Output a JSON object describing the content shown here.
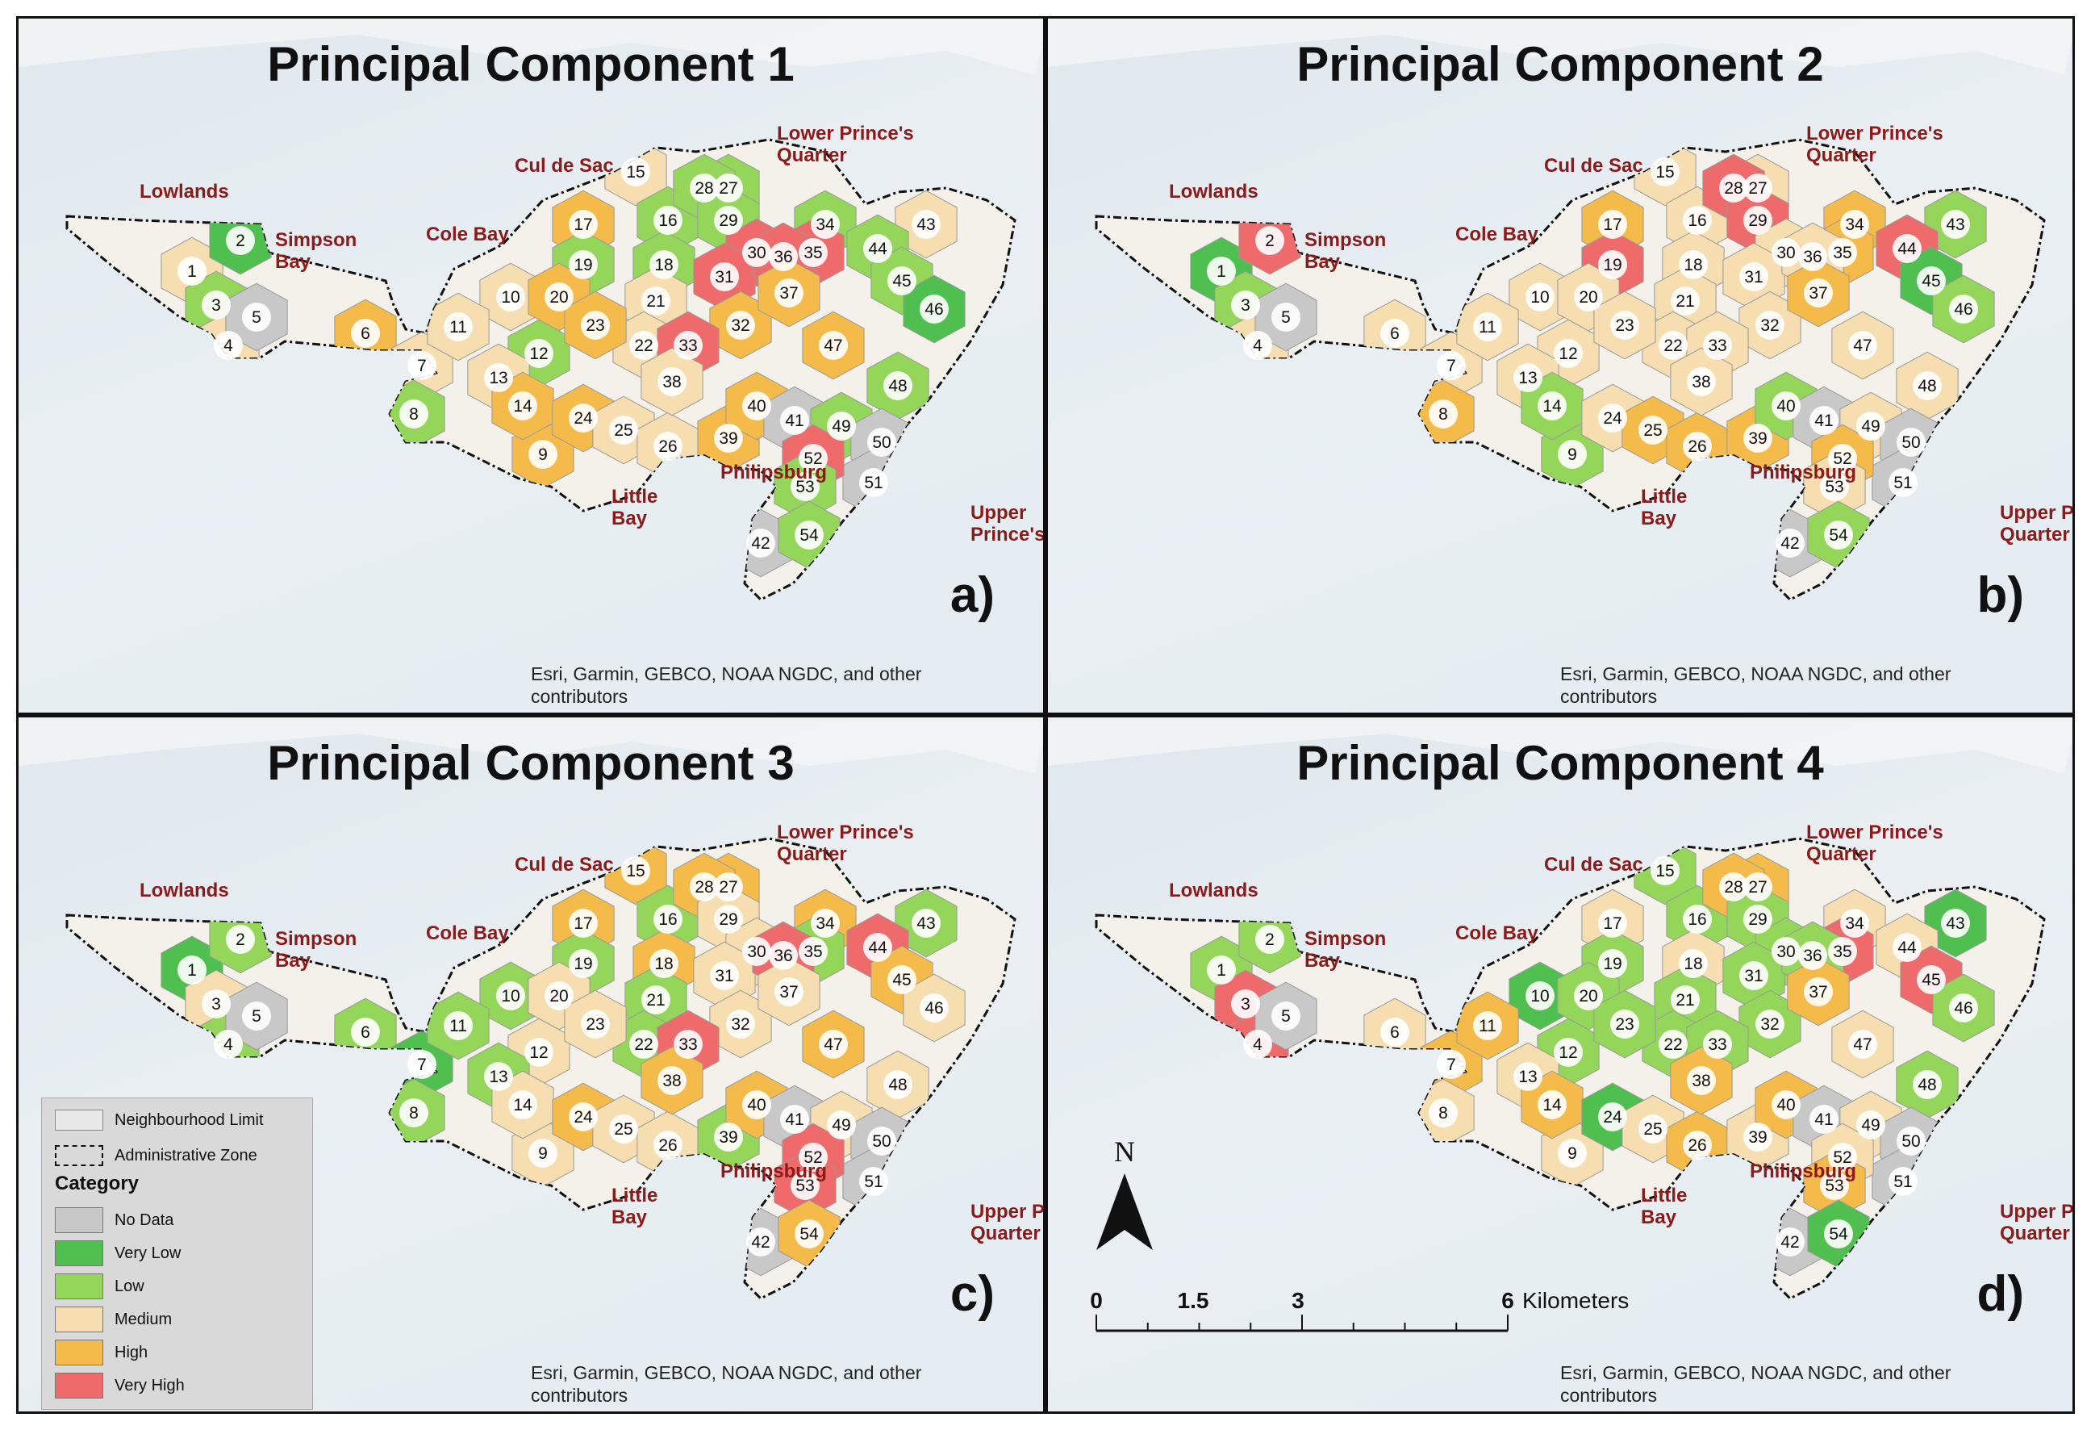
{
  "panels": [
    {
      "title": "Principal Component 1",
      "letter": "a)",
      "labels": {
        "lowlands": "Lowlands",
        "simpson": "Simpson\nBay",
        "cole": "Cole Bay",
        "culdesac": "Cul de Sac",
        "lpq": "Lower Prince's\nQuarter",
        "upq": "Upper\nPrince's Quarter",
        "phil": "Philipsburg",
        "little": "Little\nBay"
      },
      "credit": "Esri, Garmin, GEBCO, NOAA NGDC, and other contributors",
      "categories": {
        "1": "medium",
        "2": "very_low",
        "3": "low",
        "4": "medium",
        "5": "no_data",
        "6": "high",
        "7": "medium",
        "8": "low",
        "9": "high",
        "10": "medium",
        "11": "medium",
        "12": "low",
        "13": "medium",
        "14": "high",
        "15": "medium",
        "16": "low",
        "17": "high",
        "18": "low",
        "19": "low",
        "20": "high",
        "21": "medium",
        "22": "medium",
        "23": "high",
        "24": "high",
        "25": "medium",
        "26": "medium",
        "27": "low",
        "28": "low",
        "29": "low",
        "30": "very_high",
        "31": "very_high",
        "32": "high",
        "33": "very_high",
        "34": "low",
        "35": "very_high",
        "36": "very_high",
        "37": "high",
        "38": "medium",
        "39": "high",
        "40": "high",
        "41": "no_data",
        "42": "no_data",
        "43": "medium",
        "44": "low",
        "45": "low",
        "46": "very_low",
        "47": "high",
        "48": "low",
        "49": "low",
        "50": "no_data",
        "51": "no_data",
        "52": "very_high",
        "53": "low",
        "54": "low"
      }
    },
    {
      "title": "Principal Component 2",
      "letter": "b)",
      "labels": {
        "lowlands": "Lowlands",
        "simpson": "Simpson\nBay",
        "cole": "Cole Bay",
        "culdesac": "Cul de Sac",
        "lpq": "Lower Prince's\nQuarter",
        "upq": "Upper Prince's\nQuarter",
        "phil": "Philipsburg",
        "little": "Little\nBay"
      },
      "credit": "Esri, Garmin, GEBCO, NOAA NGDC, and other contributors",
      "categories": {
        "1": "very_low",
        "2": "very_high",
        "3": "low",
        "4": "medium",
        "5": "no_data",
        "6": "medium",
        "7": "medium",
        "8": "high",
        "9": "low",
        "10": "medium",
        "11": "medium",
        "12": "medium",
        "13": "medium",
        "14": "low",
        "15": "medium",
        "16": "medium",
        "17": "high",
        "18": "medium",
        "19": "very_high",
        "20": "medium",
        "21": "medium",
        "22": "medium",
        "23": "medium",
        "24": "medium",
        "25": "high",
        "26": "high",
        "27": "medium",
        "28": "very_high",
        "29": "very_high",
        "30": "medium",
        "31": "medium",
        "32": "medium",
        "33": "medium",
        "34": "high",
        "35": "high",
        "36": "medium",
        "37": "high",
        "38": "medium",
        "39": "high",
        "40": "low",
        "41": "no_data",
        "42": "no_data",
        "43": "low",
        "44": "very_high",
        "45": "very_low",
        "46": "low",
        "47": "medium",
        "48": "medium",
        "49": "medium",
        "50": "no_data",
        "51": "no_data",
        "52": "high",
        "53": "medium",
        "54": "low"
      }
    },
    {
      "title": "Principal Component 3",
      "letter": "c)",
      "labels": {
        "lowlands": "Lowlands",
        "simpson": "Simpson\nBay",
        "cole": "Cole Bay",
        "culdesac": "Cul de Sac",
        "lpq": "Lower Prince's\nQuarter",
        "upq": "Upper Prince's\nQuarter",
        "phil": "Philipsburg",
        "little": "Little\nBay"
      },
      "credit": "Esri, Garmin, GEBCO, NOAA NGDC, and other contributors",
      "categories": {
        "1": "very_low",
        "2": "low",
        "3": "medium",
        "4": "low",
        "5": "no_data",
        "6": "low",
        "7": "very_low",
        "8": "low",
        "9": "medium",
        "10": "low",
        "11": "low",
        "12": "medium",
        "13": "low",
        "14": "medium",
        "15": "high",
        "16": "low",
        "17": "high",
        "18": "high",
        "19": "low",
        "20": "medium",
        "21": "low",
        "22": "low",
        "23": "medium",
        "24": "high",
        "25": "medium",
        "26": "medium",
        "27": "high",
        "28": "high",
        "29": "medium",
        "30": "medium",
        "31": "medium",
        "32": "medium",
        "33": "very_high",
        "34": "high",
        "35": "low",
        "36": "very_high",
        "37": "medium",
        "38": "high",
        "39": "low",
        "40": "high",
        "41": "no_data",
        "42": "no_data",
        "43": "low",
        "44": "very_high",
        "45": "high",
        "46": "medium",
        "47": "high",
        "48": "medium",
        "49": "medium",
        "50": "no_data",
        "51": "no_data",
        "52": "very_high",
        "53": "very_high",
        "54": "high"
      }
    },
    {
      "title": "Principal Component 4",
      "letter": "d)",
      "labels": {
        "lowlands": "Lowlands",
        "simpson": "Simpson\nBay",
        "cole": "Cole Bay",
        "culdesac": "Cul de Sac",
        "lpq": "Lower Prince's\nQuarter",
        "upq": "Upper Prince's\nQuarter",
        "phil": "Philipsburg",
        "little": "Little\nBay"
      },
      "credit": "Esri, Garmin, GEBCO, NOAA NGDC, and other contributors",
      "categories": {
        "1": "low",
        "2": "low",
        "3": "very_high",
        "4": "very_high",
        "5": "no_data",
        "6": "medium",
        "7": "high",
        "8": "medium",
        "9": "medium",
        "10": "very_low",
        "11": "high",
        "12": "low",
        "13": "medium",
        "14": "high",
        "15": "low",
        "16": "low",
        "17": "medium",
        "18": "medium",
        "19": "low",
        "20": "low",
        "21": "low",
        "22": "low",
        "23": "low",
        "24": "very_low",
        "25": "medium",
        "26": "high",
        "27": "high",
        "28": "high",
        "29": "low",
        "30": "low",
        "31": "low",
        "32": "low",
        "33": "low",
        "34": "medium",
        "35": "very_high",
        "36": "low",
        "37": "high",
        "38": "high",
        "39": "medium",
        "40": "high",
        "41": "no_data",
        "42": "no_data",
        "43": "very_low",
        "44": "medium",
        "45": "very_high",
        "46": "low",
        "47": "medium",
        "48": "low",
        "49": "medium",
        "50": "no_data",
        "51": "no_data",
        "52": "medium",
        "53": "high",
        "54": "very_low"
      }
    }
  ],
  "legend": {
    "neighbourhood_limit": "Neighbourhood Limit",
    "administrative_zone": "Administrative Zone",
    "category_heading": "Category",
    "items": [
      {
        "key": "no_data",
        "label": "No Data",
        "color": "#c8c8c8"
      },
      {
        "key": "very_low",
        "label": "Very Low",
        "color": "#4fbf4f"
      },
      {
        "key": "low",
        "label": "Low",
        "color": "#94d65a"
      },
      {
        "key": "medium",
        "label": "Medium",
        "color": "#f6deb0"
      },
      {
        "key": "high",
        "label": "High",
        "color": "#f5bb4a"
      },
      {
        "key": "very_high",
        "label": "Very High",
        "color": "#ef6a6a"
      }
    ]
  },
  "north_arrow": "N",
  "scale_bar": {
    "ticks": [
      "0",
      "1.5",
      "3",
      "6"
    ],
    "unit": "Kilometers"
  }
}
